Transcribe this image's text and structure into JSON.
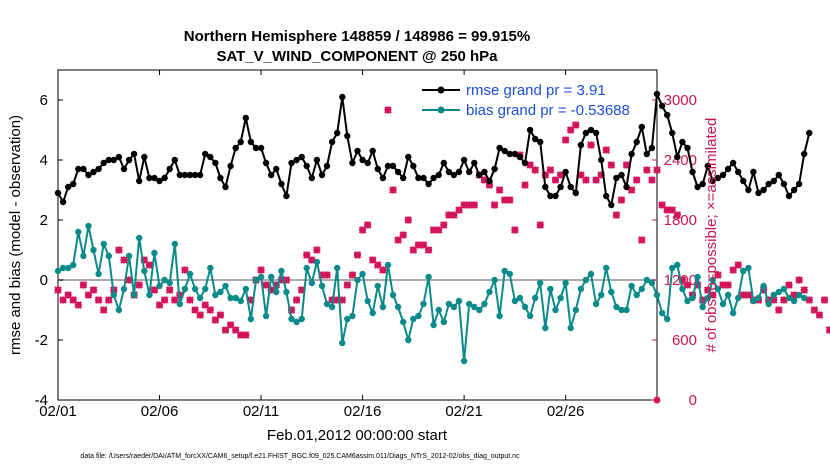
{
  "chart_data": {
    "type": "line",
    "title": "Northern Hemisphere 148859 / 148986 = 99.915%",
    "subtitle": "SAT_V_WIND_COMPONENT @ 250 hPa",
    "xlabel": "Feb.01,2012 00:00:00 start",
    "ylabel": "rmse and bias (model - observation)",
    "y2label": "# of obs: o=possible; ×=assimilated",
    "xlim": [
      0,
      29.5
    ],
    "ylim": [
      -4,
      7
    ],
    "y2lim": [
      0,
      3300
    ],
    "x_ticks": [
      0,
      5,
      10,
      15,
      20,
      25
    ],
    "x_tick_labels": [
      "02/01",
      "02/06",
      "02/11",
      "02/16",
      "02/21",
      "02/26"
    ],
    "y_ticks": [
      -4,
      -2,
      0,
      2,
      4,
      6
    ],
    "y2_ticks": [
      0,
      600,
      1200,
      1800,
      2400,
      3000
    ],
    "footnote": "data file: /Users/raeder/DAI/ATM_forcXX/CAM6_setup/f.e21.FHIST_BGC.f09_025.CAM6assim.011/Diags_NTrS_2012-02/obs_diag_output.nc",
    "series": [
      {
        "name": "rmse grand pr = 3.91",
        "color": "#000000",
        "x_start": 0.0,
        "x_step": 0.25,
        "values": [
          2.9,
          2.6,
          3.1,
          3.2,
          3.7,
          3.7,
          3.5,
          3.6,
          3.7,
          3.9,
          4.0,
          4.0,
          4.1,
          3.7,
          4.0,
          4.2,
          3.3,
          4.1,
          3.4,
          3.4,
          3.3,
          3.4,
          3.7,
          4.0,
          3.5,
          3.5,
          3.5,
          3.5,
          3.5,
          4.2,
          4.1,
          3.9,
          3.4,
          3.1,
          3.8,
          4.4,
          4.6,
          5.4,
          4.6,
          4.4,
          4.4,
          3.9,
          3.5,
          3.7,
          3.2,
          2.8,
          3.9,
          4.0,
          4.1,
          3.8,
          3.4,
          4.0,
          3.5,
          3.8,
          4.6,
          4.9,
          6.1,
          4.8,
          3.9,
          4.3,
          4.0,
          3.9,
          4.3,
          3.7,
          3.4,
          3.8,
          3.8,
          3.6,
          3.4,
          4.1,
          3.8,
          3.4,
          3.4,
          3.2,
          3.4,
          3.5,
          3.9,
          3.6,
          3.5,
          3.6,
          4.0,
          3.6,
          3.9,
          3.5,
          3.6,
          3.3,
          3.7,
          4.4,
          4.3,
          4.2,
          4.2,
          4.1,
          3.9,
          5.0,
          4.7,
          4.6,
          3.1,
          2.8,
          2.8,
          3.1,
          3.6,
          3.1,
          2.9,
          4.5,
          4.9,
          5.0,
          4.9,
          4.0,
          2.8,
          2.5,
          3.4,
          3.5,
          3.1,
          4.2,
          4.6,
          5.1,
          4.2,
          4.4,
          6.2,
          5.8,
          5.5,
          4.9,
          4.1,
          4.6,
          4.4,
          3.6,
          3.1,
          3.2,
          3.8,
          3.3,
          3.4,
          3.5,
          3.7,
          3.9,
          3.6,
          3.3,
          3.0,
          3.6,
          2.9,
          3.0,
          3.2,
          3.3,
          3.5,
          3.2,
          2.8,
          3.0,
          3.2,
          4.2,
          4.9
        ]
      },
      {
        "name": "bias grand pr = -0.53688",
        "color": "#0a8a8a",
        "x_start": 0.0,
        "x_step": 0.25,
        "values": [
          0.3,
          0.4,
          0.4,
          0.5,
          1.6,
          0.8,
          1.8,
          1.0,
          0.2,
          1.2,
          0.8,
          -0.5,
          -1.0,
          -0.3,
          0.8,
          -0.5,
          1.4,
          0.3,
          -0.5,
          0.9,
          -0.2,
          0.0,
          -0.1,
          1.2,
          -0.8,
          -0.3,
          0.2,
          -0.3,
          -0.6,
          -0.3,
          0.4,
          -0.5,
          -0.4,
          -0.2,
          -0.6,
          -0.6,
          -0.7,
          -0.3,
          -1.3,
          0.0,
          0.1,
          -1.2,
          0.1,
          -0.4,
          0.3,
          -0.4,
          -1.3,
          -1.4,
          -1.3,
          0.4,
          -0.1,
          0.6,
          -0.2,
          -0.8,
          -0.9,
          0.4,
          -2.1,
          -1.3,
          -1.2,
          0.0,
          0.2,
          -0.7,
          -1.1,
          -0.2,
          -0.9,
          0.5,
          -0.5,
          -0.9,
          -1.4,
          -2.0,
          -1.3,
          -1.2,
          -0.8,
          0.1,
          -1.5,
          -1.0,
          -1.4,
          -0.8,
          -0.9,
          -0.7,
          -2.7,
          -0.8,
          -0.9,
          -1.0,
          -0.8,
          -0.4,
          0.0,
          -1.2,
          0.3,
          0.2,
          -0.7,
          -0.6,
          -0.9,
          -1.2,
          -0.6,
          -0.1,
          -1.6,
          -0.3,
          -1.0,
          -0.6,
          -0.1,
          -1.6,
          -1.0,
          -0.3,
          0.0,
          0.2,
          -0.8,
          -0.5,
          0.4,
          -0.4,
          -0.9,
          -1.0,
          -1.0,
          -0.2,
          -0.5,
          -0.3,
          0.0,
          -0.1,
          -0.5,
          -1.1,
          -1.3,
          0.4,
          0.5,
          -0.3,
          -0.7,
          -0.6,
          0.1,
          -0.9,
          -0.6,
          0.0,
          -0.3,
          -0.8,
          -0.5,
          -1.1,
          -0.6,
          0.3,
          0.4,
          -0.7,
          -0.6,
          -0.2,
          -0.8,
          -0.5,
          -0.4,
          -0.3,
          -0.6,
          -0.7,
          -0.5,
          -0.6
        ]
      },
      {
        "name": "obs assimilated",
        "axis": "right",
        "marker": "x",
        "color": "#d4145a",
        "x_start": 0.0,
        "x_step": 0.25,
        "values": [
          1100,
          1000,
          1050,
          1000,
          950,
          1150,
          1050,
          1100,
          1000,
          900,
          1000,
          1100,
          1500,
          1400,
          1200,
          1050,
          1150,
          1400,
          1350,
          1100,
          950,
          1000,
          1100,
          1000,
          1050,
          1300,
          1000,
          900,
          850,
          950,
          900,
          800,
          850,
          700,
          750,
          700,
          650,
          650,
          1000,
          1200,
          1300,
          1150,
          1100,
          1150,
          1200,
          1200,
          900,
          1000,
          1100,
          1450,
          1400,
          1500,
          1250,
          1250,
          1000,
          1000,
          1000,
          1150,
          1250,
          1450,
          1700,
          1750,
          1400,
          1350,
          1300,
          2900,
          2100,
          1600,
          1650,
          1800,
          1500,
          1550,
          1550,
          1500,
          1700,
          1700,
          1750,
          1850,
          1850,
          1900,
          1950,
          1950,
          1950,
          2250,
          2200,
          2150,
          1950,
          2100,
          2000,
          2000,
          1700,
          2450,
          2150,
          2350,
          2300,
          1750,
          2250,
          2300,
          2200,
          2250,
          2600,
          2700,
          2750,
          2250,
          2200,
          2550,
          2200,
          2250,
          2500,
          2350,
          1850,
          2000,
          2350,
          2100,
          2200,
          1600,
          2300,
          2200,
          2300,
          1950,
          1900,
          1900,
          1850,
          1200,
          1150,
          1050,
          1150,
          1000,
          1100,
          1050,
          1250,
          1150,
          1150,
          1300,
          1350,
          1050,
          1050,
          1000,
          1000,
          1100,
          1000,
          1000,
          900,
          1000,
          1150,
          1050,
          1200,
          1100,
          1000,
          900,
          850,
          1000,
          700,
          700,
          650,
          1000
        ]
      }
    ]
  }
}
